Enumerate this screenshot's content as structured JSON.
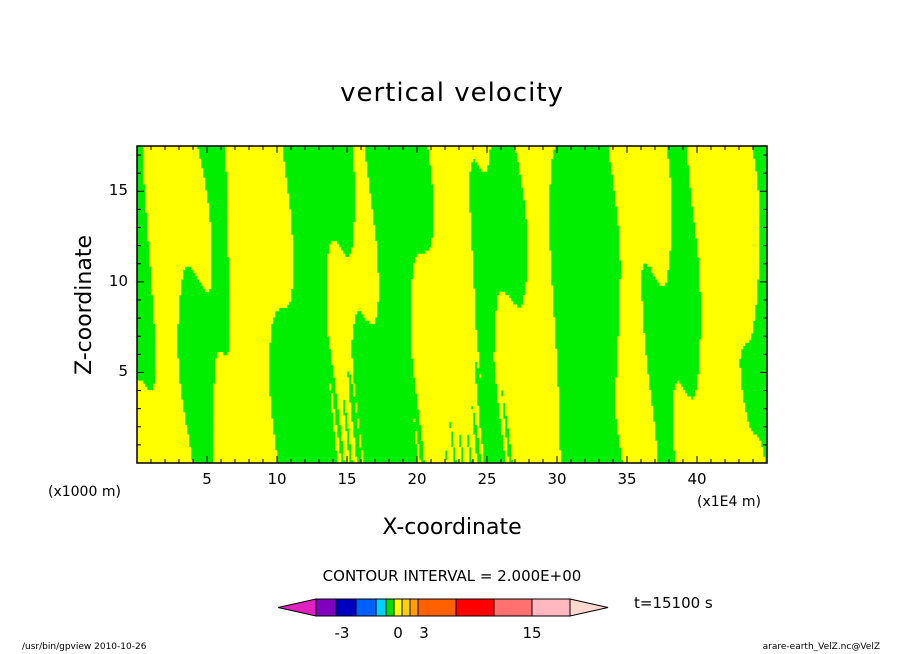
{
  "chart_data": {
    "type": "heatmap",
    "title": "vertical velocity",
    "xlabel": "X-coordinate",
    "ylabel": "Z-coordinate",
    "x_unit_left": "(x1000 m)",
    "x_unit_right": "(x1E4 m)",
    "xlim": [
      0,
      45
    ],
    "ylim": [
      0,
      17.5
    ],
    "x_ticks": [
      5,
      10,
      15,
      20,
      25,
      30,
      35,
      40
    ],
    "y_ticks": [
      5,
      10,
      15
    ],
    "contour_interval_text": "CONTOUR INTERVAL = 2.000E+00",
    "time_text": "t=15100 s",
    "colorbar": {
      "colors": [
        "#e020c0",
        "#8000c0",
        "#0000c0",
        "#0060ff",
        "#00d0ff",
        "#00e000",
        "#ffff00",
        "#ffd000",
        "#ffa000",
        "#ff6000",
        "#ff0000",
        "#ff7070",
        "#ffb8c0",
        "#ffd8d0"
      ],
      "tick_labels": [
        "-3",
        "0",
        "3",
        "15"
      ]
    },
    "field_colors": {
      "positive": "#ffff00",
      "negative": "#00ee00",
      "contour": "#000000"
    }
  },
  "footer": {
    "left": "/usr/bin/gpview   2010-10-26",
    "right": "arare-earth_VelZ.nc@VelZ"
  }
}
